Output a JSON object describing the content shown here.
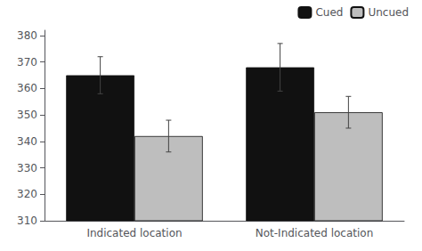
{
  "chart_data": {
    "type": "bar",
    "categories": [
      "Indicated location",
      "Not-Indicated location"
    ],
    "series": [
      {
        "name": "Cued",
        "color": "#111111",
        "values": [
          365,
          368
        ],
        "errors": [
          7,
          9
        ]
      },
      {
        "name": "Uncued",
        "color": "#bebebe",
        "values": [
          342,
          351
        ],
        "errors": [
          6,
          6
        ]
      }
    ],
    "ylim": [
      310,
      382
    ],
    "yticks": [
      310,
      320,
      330,
      340,
      350,
      360,
      370,
      380
    ],
    "grid": false,
    "legend": "upper right"
  }
}
